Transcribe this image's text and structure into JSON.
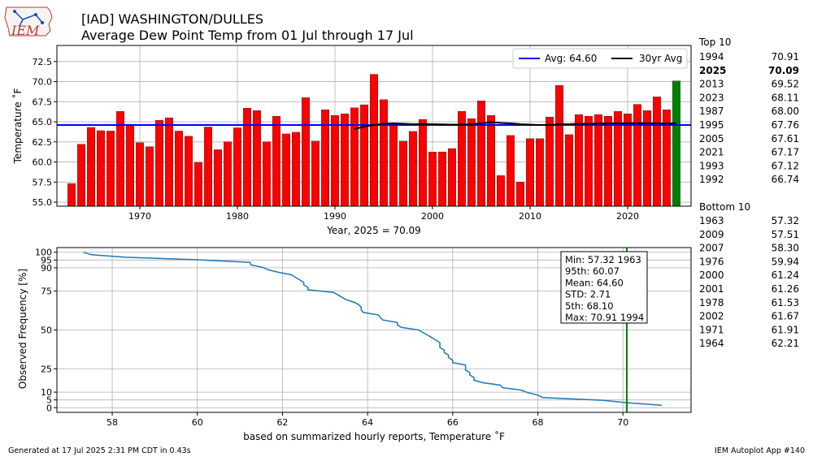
{
  "header": {
    "logo_text": "IEM",
    "title_line1": "[IAD] WASHINGTON/DULLES",
    "title_line2": "Average Dew Point Temp from 01 Jul through 17 Jul"
  },
  "footer": {
    "generated": "Generated at 17 Jul 2025 2:31 PM CDT in 0.43s",
    "app": "IEM Autoplot App #140"
  },
  "colors": {
    "bar": "#ff0000",
    "current_bar": "#008000",
    "avg_line": "#0000ff",
    "thirty_yr_line": "#000000",
    "cdf_line": "#1f77b4",
    "marker_line": "#008000"
  },
  "chart_data": [
    {
      "type": "bar",
      "ylabel": "Temperature $^\\circ$F",
      "ylabel_display": "Temperature ˚F",
      "xlabel": "Year, 2025 = 70.09",
      "ylim": [
        54.5,
        74.5
      ],
      "xlim": [
        1961.5,
        2026.5
      ],
      "yticks": [
        "55.0",
        "57.5",
        "60.0",
        "62.5",
        "65.0",
        "67.5",
        "70.0",
        "72.5"
      ],
      "xticks": [
        "1970",
        "1980",
        "1990",
        "2000",
        "2010",
        "2020"
      ],
      "grid": true,
      "legend_placement": "top-right",
      "legend": [
        "Avg: 64.60",
        "30yr Avg"
      ],
      "average": 64.6,
      "current_year": 2025,
      "categories": [
        1963,
        1964,
        1965,
        1966,
        1967,
        1968,
        1969,
        1970,
        1971,
        1972,
        1973,
        1974,
        1975,
        1976,
        1977,
        1978,
        1979,
        1980,
        1981,
        1982,
        1983,
        1984,
        1985,
        1986,
        1987,
        1988,
        1989,
        1990,
        1991,
        1992,
        1993,
        1994,
        1995,
        1996,
        1997,
        1998,
        1999,
        2000,
        2001,
        2002,
        2003,
        2004,
        2005,
        2006,
        2007,
        2008,
        2009,
        2010,
        2011,
        2012,
        2013,
        2014,
        2015,
        2016,
        2017,
        2018,
        2019,
        2020,
        2021,
        2022,
        2023,
        2024,
        2025
      ],
      "values": [
        57.32,
        62.21,
        64.3,
        63.9,
        63.85,
        66.3,
        64.7,
        62.4,
        61.91,
        65.2,
        65.5,
        63.85,
        63.2,
        59.94,
        64.35,
        61.53,
        62.5,
        64.25,
        66.7,
        66.4,
        62.5,
        65.7,
        63.5,
        63.7,
        68.0,
        62.6,
        66.5,
        65.8,
        66.0,
        66.74,
        67.12,
        70.91,
        67.76,
        64.8,
        62.6,
        63.8,
        65.3,
        61.24,
        61.26,
        61.67,
        66.3,
        65.4,
        67.61,
        65.8,
        58.3,
        63.3,
        57.51,
        62.9,
        62.9,
        65.6,
        69.52,
        63.4,
        65.9,
        65.7,
        65.9,
        65.7,
        66.3,
        66.0,
        67.17,
        66.4,
        68.11,
        66.5,
        70.09
      ],
      "thirty_yr_avg": {
        "x": [
          1992,
          1993,
          1994,
          1995,
          1996,
          1997,
          1998,
          1999,
          2000,
          2001,
          2002,
          2003,
          2004,
          2005,
          2006,
          2007,
          2008,
          2009,
          2010,
          2011,
          2012,
          2013,
          2014,
          2015,
          2016,
          2017,
          2018,
          2019,
          2020,
          2021,
          2022,
          2023,
          2024,
          2025
        ],
        "values": [
          64.1,
          64.4,
          64.6,
          64.75,
          64.8,
          64.75,
          64.7,
          64.72,
          64.7,
          64.68,
          64.65,
          64.65,
          64.7,
          64.8,
          64.95,
          64.85,
          64.8,
          64.7,
          64.65,
          64.6,
          64.6,
          64.7,
          64.7,
          64.75,
          64.75,
          64.78,
          64.8,
          64.8,
          64.8,
          64.82,
          64.8,
          64.8,
          64.78,
          64.8
        ]
      }
    },
    {
      "type": "line",
      "ylabel": "Observed Frequency [%]",
      "xlabel": "based on summarized hourly reports, Temperature $^\\circ$F",
      "xlabel_display": "based on summarized hourly reports, Temperature ˚F",
      "xlim": [
        56.7,
        71.6
      ],
      "ylim": [
        -3,
        103
      ],
      "xticks": [
        "58",
        "60",
        "62",
        "64",
        "66",
        "68",
        "70"
      ],
      "yticks": [
        "0",
        "5",
        "10",
        "25",
        "50",
        "75",
        "90",
        "95",
        "100"
      ],
      "grid": true,
      "series": [
        {
          "x": [
            57.32,
            57.51,
            58.3,
            59.94,
            61.24,
            61.26,
            61.53,
            61.67,
            61.91,
            62.21,
            62.3,
            62.4,
            62.5,
            62.5,
            62.6,
            62.6,
            63.2,
            63.3,
            63.4,
            63.5,
            63.7,
            63.8,
            63.85,
            63.85,
            63.9,
            64.25,
            64.3,
            64.35,
            64.7,
            64.7,
            64.8,
            65.2,
            65.3,
            65.4,
            65.5,
            65.6,
            65.7,
            65.7,
            65.7,
            65.8,
            65.8,
            65.9,
            65.9,
            66.0,
            66.0,
            66.3,
            66.3,
            66.3,
            66.4,
            66.4,
            66.5,
            66.5,
            66.7,
            67.12,
            67.17,
            67.61,
            67.76,
            68.0,
            68.11,
            69.52,
            70.09,
            70.91
          ],
          "y": [
            100,
            98.4,
            96.8,
            95.2,
            93.5,
            91.9,
            90.3,
            88.7,
            87.1,
            85.5,
            83.9,
            82.3,
            80.6,
            79,
            77.4,
            75.8,
            74.2,
            72.6,
            71,
            69.4,
            67.7,
            66.1,
            64.5,
            62.9,
            61.3,
            59.7,
            58.1,
            56.5,
            54.8,
            53.2,
            51.6,
            50,
            48.4,
            46.8,
            45.2,
            43.5,
            41.9,
            40.3,
            38.7,
            37.1,
            35.5,
            33.9,
            32.3,
            30.6,
            29,
            27.4,
            25.8,
            24.2,
            22.6,
            21,
            19.4,
            17.7,
            16.1,
            14.5,
            12.9,
            11.3,
            9.7,
            8.1,
            6.5,
            4.8,
            3.2,
            1.6
          ]
        }
      ],
      "current_value": 70.09,
      "stats_box": [
        "Min: 57.32 1963",
        "95th: 60.07",
        "Mean: 64.60",
        "STD: 2.71",
        "5th: 68.10",
        "Max: 70.91 1994"
      ]
    }
  ],
  "rankings": {
    "top_title": "Top 10",
    "top": [
      {
        "year": "1994",
        "value": "70.91",
        "bold": false
      },
      {
        "year": "2025",
        "value": "70.09",
        "bold": true
      },
      {
        "year": "2013",
        "value": "69.52",
        "bold": false
      },
      {
        "year": "2023",
        "value": "68.11",
        "bold": false
      },
      {
        "year": "1987",
        "value": "68.00",
        "bold": false
      },
      {
        "year": "1995",
        "value": "67.76",
        "bold": false
      },
      {
        "year": "2005",
        "value": "67.61",
        "bold": false
      },
      {
        "year": "2021",
        "value": "67.17",
        "bold": false
      },
      {
        "year": "1993",
        "value": "67.12",
        "bold": false
      },
      {
        "year": "1992",
        "value": "66.74",
        "bold": false
      }
    ],
    "bottom_title": "Bottom 10",
    "bottom": [
      {
        "year": "1963",
        "value": "57.32"
      },
      {
        "year": "2009",
        "value": "57.51"
      },
      {
        "year": "2007",
        "value": "58.30"
      },
      {
        "year": "1976",
        "value": "59.94"
      },
      {
        "year": "2000",
        "value": "61.24"
      },
      {
        "year": "2001",
        "value": "61.26"
      },
      {
        "year": "1978",
        "value": "61.53"
      },
      {
        "year": "2002",
        "value": "61.67"
      },
      {
        "year": "1971",
        "value": "61.91"
      },
      {
        "year": "1964",
        "value": "62.21"
      }
    ]
  }
}
